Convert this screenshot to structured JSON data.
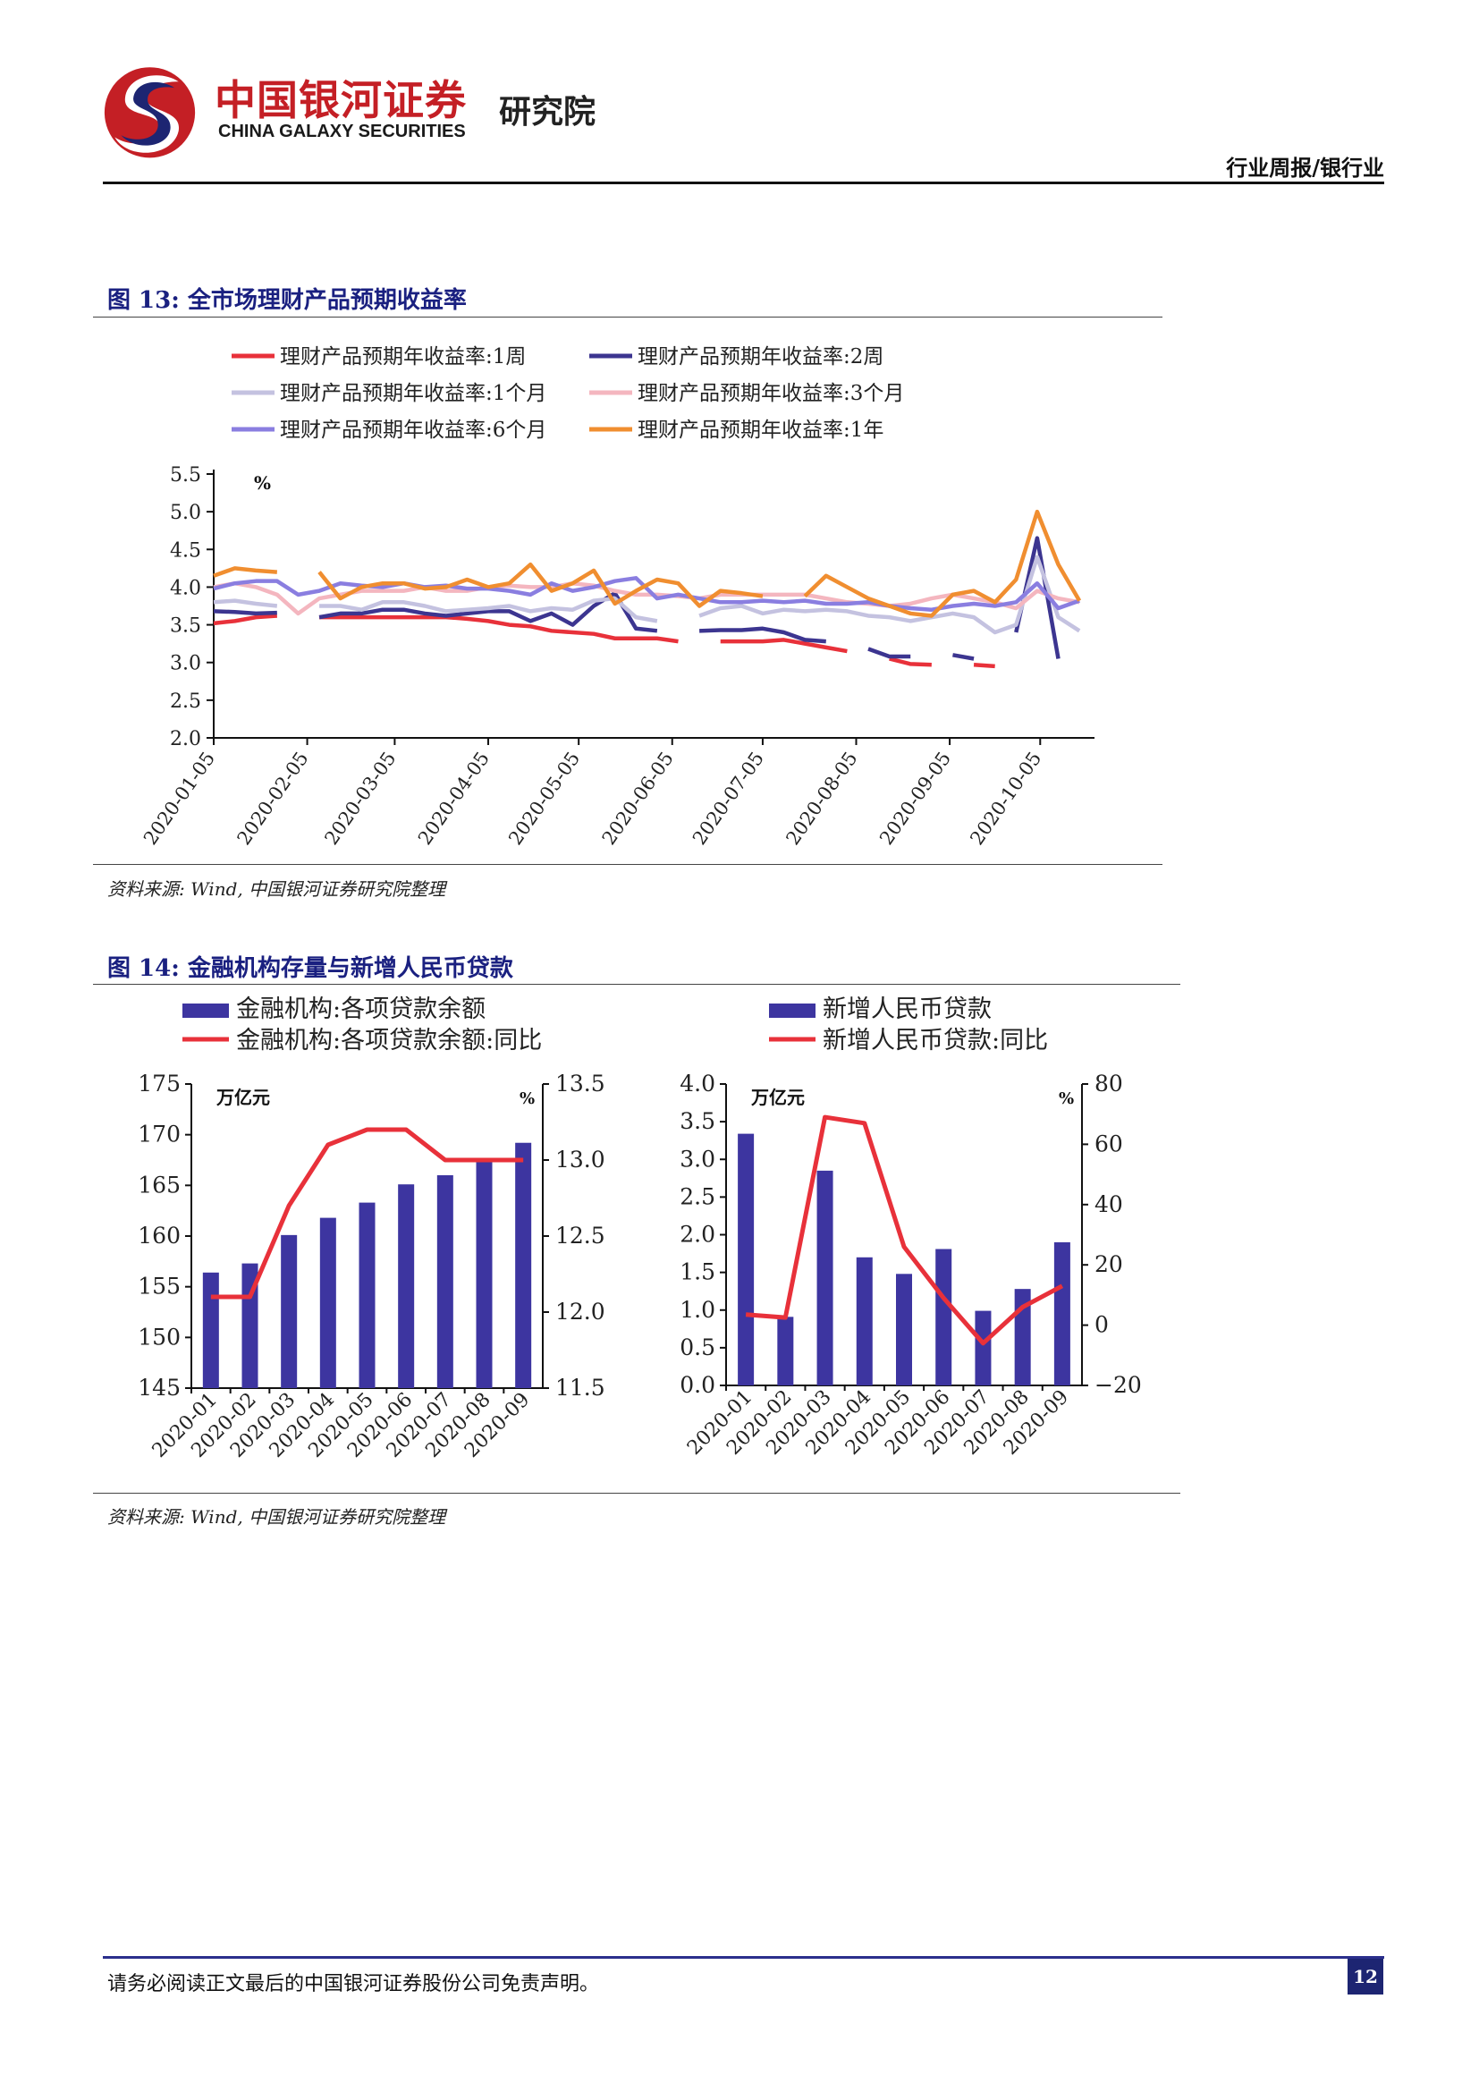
{
  "header": {
    "logo_cn": "中国银河证券",
    "logo_en": "CHINA GALAXY SECURITIES",
    "institute": "研究院",
    "report_type": "行业周报/银行业"
  },
  "figures": [
    {
      "title": "图 13: 全市场理财产品预期收益率",
      "source": "资料来源: Wind, 中国银河证券研究院整理"
    },
    {
      "title": "图 14: 金融机构存量与新增人民币贷款",
      "source": "资料来源: Wind, 中国银河证券研究院整理"
    }
  ],
  "footer": {
    "disclaimer": "请务必阅读正文最后的中国银河证券股份公司免责声明。",
    "page": "12"
  },
  "chart_data": [
    {
      "type": "line",
      "ylabel": "%",
      "ylim": [
        2.0,
        5.5
      ],
      "yticks": [
        "5.5",
        "5.0",
        "4.5",
        "4.0",
        "3.5",
        "3.0",
        "2.5",
        "2.0"
      ],
      "x_labels": [
        "2020-01-05",
        "2020-02-05",
        "2020-03-05",
        "2020-04-05",
        "2020-05-05",
        "2020-06-05",
        "2020-07-05",
        "2020-08-05",
        "2020-09-05",
        "2020-10-05"
      ],
      "x_dates": [
        "2020-01-05",
        "2020-01-12",
        "2020-01-19",
        "2020-01-26",
        "2020-02-02",
        "2020-02-09",
        "2020-02-16",
        "2020-02-23",
        "2020-03-01",
        "2020-03-08",
        "2020-03-15",
        "2020-03-22",
        "2020-03-29",
        "2020-04-05",
        "2020-04-12",
        "2020-04-19",
        "2020-04-26",
        "2020-05-03",
        "2020-05-10",
        "2020-05-17",
        "2020-05-24",
        "2020-05-31",
        "2020-06-07",
        "2020-06-14",
        "2020-06-21",
        "2020-06-28",
        "2020-07-05",
        "2020-07-12",
        "2020-07-19",
        "2020-07-26",
        "2020-08-02",
        "2020-08-09",
        "2020-08-16",
        "2020-08-23",
        "2020-08-30",
        "2020-09-06",
        "2020-09-13",
        "2020-09-20",
        "2020-09-27",
        "2020-10-04",
        "2020-10-11",
        "2020-10-18"
      ],
      "legend": "top",
      "series": [
        {
          "name": "理财产品预期年收益率:1周",
          "color": "#e8313a",
          "values": [
            3.52,
            3.55,
            3.6,
            3.62,
            null,
            3.6,
            3.6,
            3.6,
            3.6,
            3.6,
            3.6,
            3.6,
            3.58,
            3.55,
            3.5,
            3.48,
            3.42,
            3.4,
            3.38,
            3.32,
            3.32,
            3.32,
            3.28,
            null,
            3.28,
            3.28,
            3.28,
            3.3,
            3.25,
            3.2,
            3.15,
            null,
            3.05,
            2.98,
            2.97,
            null,
            2.97,
            2.95,
            null,
            null,
            null,
            null
          ]
        },
        {
          "name": "理财产品预期年收益率:2周",
          "color": "#3c3590",
          "values": [
            3.68,
            3.67,
            3.65,
            3.66,
            null,
            3.6,
            3.65,
            3.65,
            3.7,
            3.7,
            3.65,
            3.62,
            3.65,
            3.68,
            3.68,
            3.55,
            3.65,
            3.5,
            3.75,
            3.92,
            3.45,
            3.42,
            null,
            3.42,
            3.43,
            3.43,
            3.45,
            3.4,
            3.3,
            3.28,
            null,
            3.18,
            3.08,
            3.08,
            null,
            3.1,
            3.05,
            null,
            3.4,
            4.65,
            3.05,
            null
          ]
        },
        {
          "name": "理财产品预期年收益率:1个月",
          "color": "#c4c2e0",
          "values": [
            3.8,
            3.82,
            3.78,
            3.75,
            null,
            3.75,
            3.75,
            3.7,
            3.8,
            3.8,
            3.75,
            3.68,
            3.7,
            3.72,
            3.75,
            3.68,
            3.72,
            3.7,
            3.82,
            3.85,
            3.6,
            3.55,
            null,
            3.62,
            3.72,
            3.75,
            3.65,
            3.7,
            3.68,
            3.7,
            3.68,
            3.62,
            3.6,
            3.55,
            3.6,
            3.65,
            3.6,
            3.4,
            3.5,
            4.4,
            3.6,
            3.42
          ]
        },
        {
          "name": "理财产品预期年收益率:3个月",
          "color": "#f4b6bf",
          "values": [
            4.0,
            4.05,
            4.0,
            3.9,
            3.65,
            3.85,
            3.9,
            3.95,
            3.95,
            3.95,
            4.0,
            3.95,
            3.95,
            4.0,
            4.02,
            4.0,
            4.0,
            4.05,
            4.02,
            3.95,
            3.9,
            3.9,
            3.88,
            3.85,
            3.9,
            3.9,
            3.9,
            3.9,
            3.9,
            3.85,
            3.8,
            3.78,
            3.75,
            3.78,
            3.85,
            3.9,
            3.85,
            3.8,
            3.72,
            3.95,
            3.85,
            3.8
          ]
        },
        {
          "name": "理财产品预期年收益率:6个月",
          "color": "#8a7ee0",
          "values": [
            3.98,
            4.05,
            4.08,
            4.08,
            3.9,
            3.95,
            4.05,
            4.02,
            4.0,
            4.05,
            4.0,
            4.02,
            3.98,
            3.98,
            3.95,
            3.9,
            4.05,
            3.95,
            4.0,
            4.08,
            4.12,
            3.85,
            3.9,
            3.85,
            3.8,
            3.8,
            3.82,
            3.8,
            3.82,
            3.78,
            3.78,
            3.8,
            3.75,
            3.72,
            3.7,
            3.75,
            3.78,
            3.75,
            3.8,
            4.05,
            3.72,
            3.82
          ]
        },
        {
          "name": "理财产品预期年收益率:1年",
          "color": "#f08e30",
          "values": [
            4.15,
            4.25,
            4.22,
            4.2,
            null,
            4.2,
            3.85,
            4.0,
            4.05,
            4.05,
            3.98,
            4.0,
            4.1,
            4.0,
            4.05,
            4.3,
            3.95,
            4.05,
            4.22,
            3.78,
            3.95,
            4.1,
            4.05,
            3.75,
            3.95,
            3.92,
            3.88,
            null,
            3.88,
            4.15,
            4.0,
            3.85,
            3.75,
            3.65,
            3.62,
            3.9,
            3.95,
            3.8,
            4.1,
            5.0,
            4.3,
            3.82
          ]
        }
      ]
    },
    {
      "type": "bar",
      "categories": [
        "2020-01",
        "2020-02",
        "2020-03",
        "2020-04",
        "2020-05",
        "2020-06",
        "2020-07",
        "2020-08",
        "2020-09"
      ],
      "ylabel": "万亿元",
      "ylim": [
        145,
        175
      ],
      "yticks": [
        "175",
        "170",
        "165",
        "160",
        "155",
        "150",
        "145"
      ],
      "y2label": "%",
      "y2lim": [
        11.5,
        13.5
      ],
      "y2ticks": [
        "13.5",
        "13.0",
        "12.5",
        "12.0",
        "11.5"
      ],
      "series": [
        {
          "name": "金融机构:各项贷款余额",
          "type": "bar",
          "axis": "left",
          "color": "#3d35a0",
          "values": [
            156.4,
            157.3,
            160.1,
            161.8,
            163.3,
            165.1,
            166.0,
            167.4,
            169.2
          ]
        },
        {
          "name": "金融机构:各项贷款余额:同比",
          "type": "line",
          "axis": "right",
          "color": "#e8313a",
          "values": [
            12.1,
            12.1,
            12.7,
            13.1,
            13.2,
            13.2,
            13.0,
            13.0,
            13.0
          ]
        }
      ]
    },
    {
      "type": "bar",
      "categories": [
        "2020-01",
        "2020-02",
        "2020-03",
        "2020-04",
        "2020-05",
        "2020-06",
        "2020-07",
        "2020-08",
        "2020-09"
      ],
      "ylabel": "万亿元",
      "ylim": [
        0,
        4.0
      ],
      "yticks": [
        "4.0",
        "3.5",
        "3.0",
        "2.5",
        "2.0",
        "1.5",
        "1.0",
        "0.5",
        "0.0"
      ],
      "y2label": "%",
      "y2lim": [
        -20,
        80
      ],
      "y2ticks": [
        "80",
        "60",
        "40",
        "20",
        "0",
        "−20"
      ],
      "series": [
        {
          "name": "新增人民币贷款",
          "type": "bar",
          "axis": "left",
          "color": "#3d35a0",
          "values": [
            3.34,
            0.91,
            2.85,
            1.7,
            1.48,
            1.81,
            0.99,
            1.28,
            1.9
          ]
        },
        {
          "name": "新增人民币贷款:同比",
          "type": "line",
          "axis": "right",
          "color": "#e8313a",
          "values": [
            3.5,
            2.5,
            69,
            67,
            26,
            9,
            -6,
            6,
            13
          ]
        }
      ]
    }
  ]
}
